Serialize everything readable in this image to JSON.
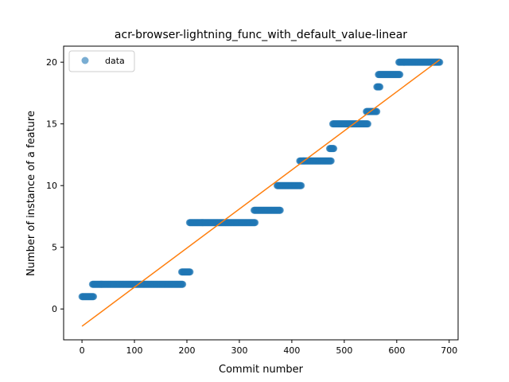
{
  "chart_data": {
    "type": "scatter",
    "title": "acr-browser-lightning_func_with_default_value-linear",
    "xlabel": "Commit number",
    "ylabel": "Number of instance of a feature",
    "xlim": [
      -35,
      717
    ],
    "ylim": [
      -2.5,
      21.3
    ],
    "xticks": [
      0,
      100,
      200,
      300,
      400,
      500,
      600,
      700
    ],
    "yticks": [
      0,
      5,
      10,
      15,
      20
    ],
    "legend": {
      "position": "top-left",
      "entries": [
        "data"
      ]
    },
    "colors": {
      "data": "#1f77b4",
      "fit": "#ff7f0e"
    },
    "series": [
      {
        "name": "data",
        "kind": "scatter",
        "segments": [
          {
            "x_start": 0,
            "x_end": 22,
            "y": 1
          },
          {
            "x_start": 20,
            "x_end": 192,
            "y": 2
          },
          {
            "x_start": 190,
            "x_end": 206,
            "y": 3
          },
          {
            "x_start": 205,
            "x_end": 330,
            "y": 7
          },
          {
            "x_start": 328,
            "x_end": 378,
            "y": 8
          },
          {
            "x_start": 372,
            "x_end": 418,
            "y": 10
          },
          {
            "x_start": 415,
            "x_end": 475,
            "y": 12
          },
          {
            "x_start": 472,
            "x_end": 480,
            "y": 13
          },
          {
            "x_start": 478,
            "x_end": 545,
            "y": 15
          },
          {
            "x_start": 542,
            "x_end": 562,
            "y": 16
          },
          {
            "x_start": 562,
            "x_end": 568,
            "y": 18
          },
          {
            "x_start": 565,
            "x_end": 606,
            "y": 19
          },
          {
            "x_start": 604,
            "x_end": 682,
            "y": 20
          }
        ]
      },
      {
        "name": "fit",
        "kind": "line",
        "x": [
          0,
          682
        ],
        "y": [
          -1.4,
          20.2
        ]
      }
    ]
  }
}
